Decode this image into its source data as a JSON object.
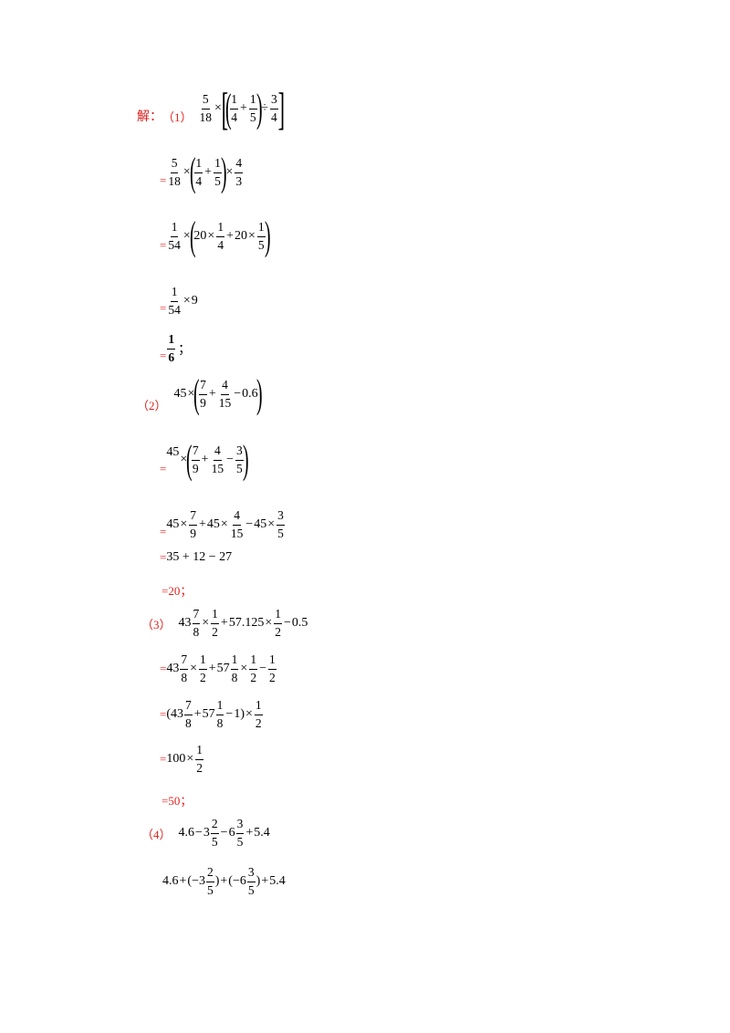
{
  "heading": {
    "jie": "解："
  },
  "p1": {
    "label": "（1）",
    "l1": {
      "f1n": "5",
      "f1d": "18",
      "f2n": "1",
      "f2d": "4",
      "f3n": "1",
      "f3d": "5",
      "f4n": "3",
      "f4d": "4"
    },
    "l2": {
      "eq": "=",
      "f1n": "5",
      "f1d": "18",
      "f2n": "1",
      "f2d": "4",
      "f3n": "1",
      "f3d": "5",
      "f4n": "4",
      "f4d": "3"
    },
    "l3": {
      "eq": "=",
      "f1n": "1",
      "f1d": "54",
      "a": "20",
      "f2n": "1",
      "f2d": "4",
      "b": "20",
      "f3n": "1",
      "f3d": "5"
    },
    "l4": {
      "eq": "=",
      "f1n": "1",
      "f1d": "54",
      "tail": "9"
    },
    "l5": {
      "eq": "=",
      "fn": "1",
      "fd": "6",
      "semi": "；"
    }
  },
  "p2": {
    "label": "（2）",
    "l1": {
      "a": "45",
      "f1n": "7",
      "f1d": "9",
      "f2n": "4",
      "f2d": "15",
      "tail": "0.6"
    },
    "l2": {
      "eq": "=",
      "a": "45",
      "f1n": "7",
      "f1d": "9",
      "f2n": "4",
      "f2d": "15",
      "f3n": "3",
      "f3d": "5"
    },
    "l3": {
      "eq": "=",
      "a": "45",
      "f1n": "7",
      "f1d": "9",
      "b": "45",
      "f2n": "4",
      "f2d": "15",
      "c": "45",
      "f3n": "3",
      "f3d": "5"
    },
    "l4": {
      "eq": "=",
      "text": "35 + 12 − 27"
    },
    "l5": {
      "text": "=20；"
    }
  },
  "p3": {
    "label": "（3）",
    "l1": {
      "a": "43",
      "f1n": "7",
      "f1d": "8",
      "f2n": "1",
      "f2d": "2",
      "b": "57.125",
      "f3n": "1",
      "f3d": "2",
      "tail": "0.5"
    },
    "l2": {
      "eq": "=",
      "a": "43",
      "f1n": "7",
      "f1d": "8",
      "f2n": "1",
      "f2d": "2",
      "b": "57",
      "f3n": "1",
      "f3d": "8",
      "f4n": "1",
      "f4d": "2",
      "f5n": "1",
      "f5d": "2"
    },
    "l3": {
      "eq": "=",
      "open": "(43",
      "f1n": "7",
      "f1d": "8",
      "b": "57",
      "f2n": "1",
      "f2d": "8",
      "close": "1)",
      "f3n": "1",
      "f3d": "2"
    },
    "l4": {
      "eq": "=",
      "a": "100",
      "fn": "1",
      "fd": "2"
    },
    "l5": {
      "text": "=50；"
    }
  },
  "p4": {
    "label": "（4）",
    "l1": {
      "a": "4.6",
      "b": "3",
      "f1n": "2",
      "f1d": "5",
      "c": "6",
      "f2n": "3",
      "f2d": "5",
      "tail": "5.4"
    },
    "l2": {
      "a": "4.6",
      "b": "(−3",
      "f1n": "2",
      "f1d": "5",
      "c": "(−6",
      "f2n": "3",
      "f2d": "5",
      "tail": "5.4"
    }
  }
}
